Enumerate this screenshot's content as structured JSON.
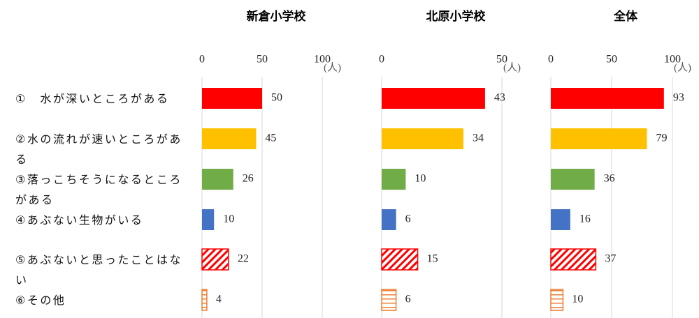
{
  "categories": [
    "①　水が深いところがある",
    "②水の流れが速いところがある",
    "③落っこちそうになるところがある",
    "④あぶない生物がいる",
    "⑤あぶないと思ったことはない",
    "⑥その他"
  ],
  "bar_styles": [
    {
      "color": "#ff0000",
      "pattern": "solid"
    },
    {
      "color": "#ffc000",
      "pattern": "solid"
    },
    {
      "color": "#70ad47",
      "pattern": "solid"
    },
    {
      "color": "#4472c4",
      "pattern": "solid"
    },
    {
      "color": "#ff0000",
      "pattern": "diagonal"
    },
    {
      "color": "#ed7d31",
      "pattern": "horizontal"
    }
  ],
  "chart_data": [
    {
      "type": "bar",
      "orientation": "horizontal",
      "title": "新倉小学校",
      "values": [
        50,
        45,
        26,
        10,
        22,
        4
      ],
      "xlim": [
        0,
        100
      ],
      "xticks": [
        0,
        50,
        100
      ],
      "x_unit": "(人)",
      "grid": true
    },
    {
      "type": "bar",
      "orientation": "horizontal",
      "title": "北原小学校",
      "values": [
        43,
        34,
        10,
        6,
        15,
        6
      ],
      "xlim": [
        0,
        50
      ],
      "xticks": [
        0,
        50
      ],
      "x_unit": "(人)",
      "grid": true
    },
    {
      "type": "bar",
      "orientation": "horizontal",
      "title": "全体",
      "values": [
        93,
        79,
        36,
        16,
        37,
        10
      ],
      "xlim": [
        0,
        100
      ],
      "xticks": [
        0,
        50,
        100
      ],
      "x_unit": "(人)",
      "grid": true
    }
  ]
}
